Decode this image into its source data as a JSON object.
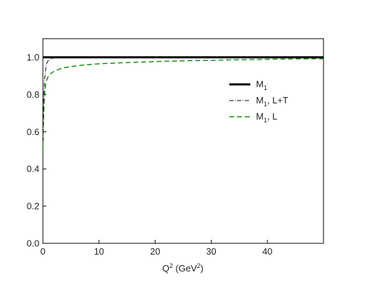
{
  "chart_data": {
    "type": "line",
    "xlabel": {
      "base": "Q",
      "base_sup": "2",
      "unit_open": " (GeV",
      "unit_sup": "2",
      "unit_close": ")"
    },
    "ylabel": "",
    "xlim": [
      0,
      50
    ],
    "ylim": [
      0,
      1.1
    ],
    "xticks": [
      0,
      10,
      20,
      30,
      40
    ],
    "xtick_labels": [
      "0",
      "10",
      "20",
      "30",
      "40"
    ],
    "yticks": [
      0.0,
      0.2,
      0.4,
      0.6,
      0.8,
      1.0
    ],
    "ytick_labels": [
      "0.0",
      "0.2",
      "0.4",
      "0.6",
      "0.8",
      "1.0"
    ],
    "grid": false,
    "legend_position": "top-right",
    "series": [
      {
        "name": "M1",
        "legend": {
          "main": "M",
          "sub": "1",
          "suffix": ""
        },
        "style": "solid",
        "color": "#000000",
        "x": [
          0,
          50
        ],
        "y": [
          1.0,
          1.0
        ]
      },
      {
        "name": "M1, L+T",
        "legend": {
          "main": "M",
          "sub": "1",
          "suffix": ", L+T"
        },
        "style": "dashdot",
        "color": "#000000",
        "x": [
          0.0,
          0.1,
          0.2,
          0.3,
          0.5,
          0.7,
          1.0,
          1.5,
          2.0,
          3.0,
          5.0,
          10.0,
          20.0,
          50.0
        ],
        "y": [
          0.55,
          0.72,
          0.82,
          0.88,
          0.94,
          0.97,
          0.985,
          0.993,
          0.996,
          0.998,
          0.999,
          1.0,
          1.0,
          1.0
        ]
      },
      {
        "name": "M1, L",
        "legend": {
          "main": "M",
          "sub": "1",
          "suffix": ", L"
        },
        "style": "dashed",
        "color": "#1f8a1f",
        "x": [
          0.0,
          0.1,
          0.2,
          0.3,
          0.5,
          0.7,
          1.0,
          1.5,
          2.0,
          3.0,
          4.0,
          5.0,
          7.0,
          10.0,
          15.0,
          20.0,
          25.0,
          30.0,
          35.0,
          40.0,
          45.0,
          50.0
        ],
        "y": [
          0.5,
          0.66,
          0.75,
          0.8,
          0.855,
          0.88,
          0.9,
          0.915,
          0.925,
          0.937,
          0.945,
          0.95,
          0.958,
          0.965,
          0.972,
          0.977,
          0.981,
          0.984,
          0.987,
          0.989,
          0.991,
          0.992
        ]
      }
    ]
  }
}
